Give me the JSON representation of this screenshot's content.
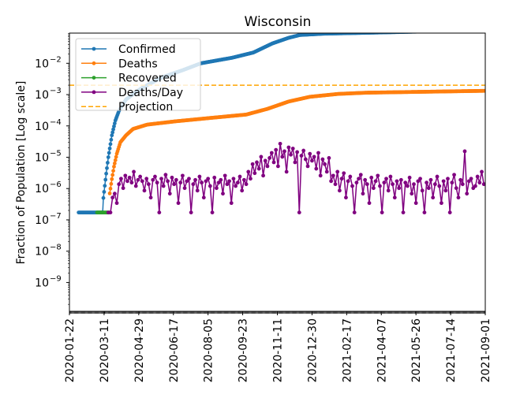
{
  "chart_data": {
    "type": "line",
    "title": "Wisconsin",
    "xlabel": "",
    "ylabel": "Fraction of Population [Log scale]",
    "yscale": "log",
    "ylim": [
      1.2e-10,
      0.092
    ],
    "x_start_date": "2020-01-22",
    "x_end_date": "2021-09-01",
    "x_range_days": [
      0,
      588
    ],
    "x_tick_labels": [
      "2020-01-22",
      "2020-03-11",
      "2020-04-29",
      "2020-06-17",
      "2020-08-05",
      "2020-09-23",
      "2020-11-11",
      "2020-12-30",
      "2021-02-17",
      "2021-04-07",
      "2021-05-26",
      "2021-07-14",
      "2021-09-01"
    ],
    "x_tick_days": [
      0,
      49,
      98,
      147,
      196,
      245,
      294,
      343,
      392,
      441,
      490,
      539,
      588
    ],
    "y_ticks": [
      {
        "value": 0.01,
        "mantissa": "10",
        "exp": "−2"
      },
      {
        "value": 0.001,
        "mantissa": "10",
        "exp": "−3"
      },
      {
        "value": 0.0001,
        "mantissa": "10",
        "exp": "−4"
      },
      {
        "value": 1e-05,
        "mantissa": "10",
        "exp": "−5"
      },
      {
        "value": 1e-06,
        "mantissa": "10",
        "exp": "−6"
      },
      {
        "value": 1e-07,
        "mantissa": "10",
        "exp": "−7"
      },
      {
        "value": 1e-08,
        "mantissa": "10",
        "exp": "−8"
      },
      {
        "value": 1e-09,
        "mantissa": "10",
        "exp": "−9"
      }
    ],
    "legend_position": "top-left",
    "series": [
      {
        "name": "Confirmed",
        "color": "#1f77b4",
        "marker": true,
        "keypoints": [
          [
            13,
            1.72e-07
          ],
          [
            47,
            1.72e-07
          ],
          [
            48,
            5e-07
          ],
          [
            52,
            3e-06
          ],
          [
            55,
            1e-05
          ],
          [
            60,
            5e-05
          ],
          [
            65,
            0.00015
          ],
          [
            70,
            0.0003
          ],
          [
            80,
            0.0007
          ],
          [
            100,
            0.0015
          ],
          [
            130,
            0.0035
          ],
          [
            160,
            0.006
          ],
          [
            186,
            0.01
          ],
          [
            230,
            0.015
          ],
          [
            260,
            0.022
          ],
          [
            287,
            0.043
          ],
          [
            310,
            0.065
          ],
          [
            326,
            0.08
          ],
          [
            360,
            0.088
          ],
          [
            420,
            0.094
          ],
          [
            588,
            0.115
          ]
        ]
      },
      {
        "name": "Deaths",
        "color": "#ff7f0e",
        "marker": true,
        "keypoints": [
          [
            57,
            7e-07
          ],
          [
            60,
            2e-06
          ],
          [
            63,
            5e-06
          ],
          [
            67,
            1.3e-05
          ],
          [
            72,
            3e-05
          ],
          [
            80,
            5e-05
          ],
          [
            90,
            8e-05
          ],
          [
            110,
            0.00011
          ],
          [
            150,
            0.00014
          ],
          [
            200,
            0.00018
          ],
          [
            250,
            0.00023
          ],
          [
            280,
            0.00035
          ],
          [
            310,
            0.0006
          ],
          [
            340,
            0.00085
          ],
          [
            380,
            0.00105
          ],
          [
            420,
            0.00115
          ],
          [
            588,
            0.00132
          ]
        ]
      },
      {
        "name": "Recovered",
        "color": "#2ca02c",
        "marker": true,
        "keypoints": [
          [
            39,
            1.72e-07
          ],
          [
            56,
            1.72e-07
          ]
        ]
      },
      {
        "name": "Deaths/Day",
        "color": "#800080",
        "marker": true,
        "fraction_per_death": 1.72e-07,
        "start_day": 55,
        "step_days": 3,
        "death_counts": [
          1,
          1,
          3,
          4,
          2,
          8,
          12,
          6,
          15,
          10,
          13,
          9,
          20,
          7,
          11,
          14,
          10,
          5,
          12,
          8,
          3,
          11,
          14,
          9,
          1,
          12,
          7,
          16,
          10,
          4,
          13,
          8,
          11,
          2,
          9,
          15,
          6,
          10,
          12,
          1,
          8,
          11,
          5,
          14,
          9,
          3,
          10,
          12,
          7,
          1,
          13,
          6,
          9,
          11,
          4,
          15,
          8,
          10,
          2,
          12,
          7,
          9,
          14,
          5,
          11,
          8,
          20,
          12,
          35,
          18,
          40,
          25,
          60,
          15,
          45,
          30,
          55,
          80,
          40,
          100,
          30,
          157,
          60,
          90,
          20,
          120,
          70,
          110,
          40,
          85,
          1,
          65,
          95,
          50,
          30,
          75,
          45,
          60,
          25,
          80,
          15,
          50,
          35,
          20,
          55,
          10,
          15,
          8,
          20,
          5,
          12,
          18,
          3,
          10,
          14,
          7,
          1,
          9,
          12,
          16,
          4,
          11,
          8,
          2,
          13,
          6,
          10,
          15,
          7,
          1,
          9,
          12,
          5,
          14,
          8,
          3,
          10,
          6,
          11,
          1,
          9,
          7,
          13,
          4,
          8,
          2,
          10,
          12,
          5,
          1,
          9,
          6,
          11,
          3,
          8,
          14,
          7,
          2,
          10,
          5,
          12,
          1,
          9,
          16,
          6,
          3,
          11,
          8,
          90,
          4,
          10,
          12,
          6,
          7,
          14,
          9,
          20,
          8
        ]
      },
      {
        "name": "Projection",
        "color": "#ffa500",
        "dashed": true,
        "value": 0.002
      }
    ]
  }
}
